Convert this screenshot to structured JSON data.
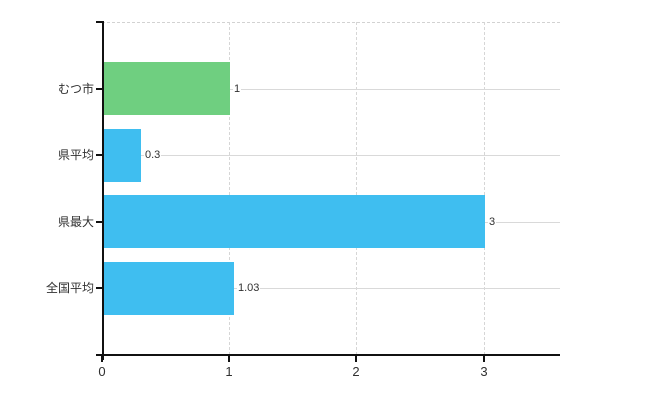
{
  "chart": {
    "background_color": "#ffffff",
    "axis_color": "#111111",
    "vertical_grid_color": "#d6d6d6",
    "horizontal_grid_color": "#d9d9d9",
    "top_border_color": "#d2d2d2",
    "text_color": "#303030"
  },
  "chart_data": {
    "type": "bar",
    "orientation": "horizontal",
    "title": "",
    "categories": [
      "むつ市",
      "県平均",
      "県最大",
      "全国平均"
    ],
    "values": [
      1,
      0.3,
      3,
      1.03
    ],
    "value_labels": [
      "1",
      "0.3",
      "3",
      "1.03"
    ],
    "bar_colors": [
      "#6fcf80",
      "#3fbef0",
      "#3fbef0",
      "#3fbef0"
    ],
    "bar_patterns": [
      "dots",
      "none",
      "none",
      "none"
    ],
    "xlabel": "",
    "ylabel": "",
    "xlim": [
      0,
      3.6
    ],
    "x_ticks": [
      0,
      1,
      2,
      3
    ],
    "x_tick_labels": [
      "0",
      "1",
      "2",
      "3"
    ],
    "grid": {
      "vertical": "dashed",
      "horizontal": "solid",
      "top_border": "dashed"
    },
    "legend": null
  }
}
